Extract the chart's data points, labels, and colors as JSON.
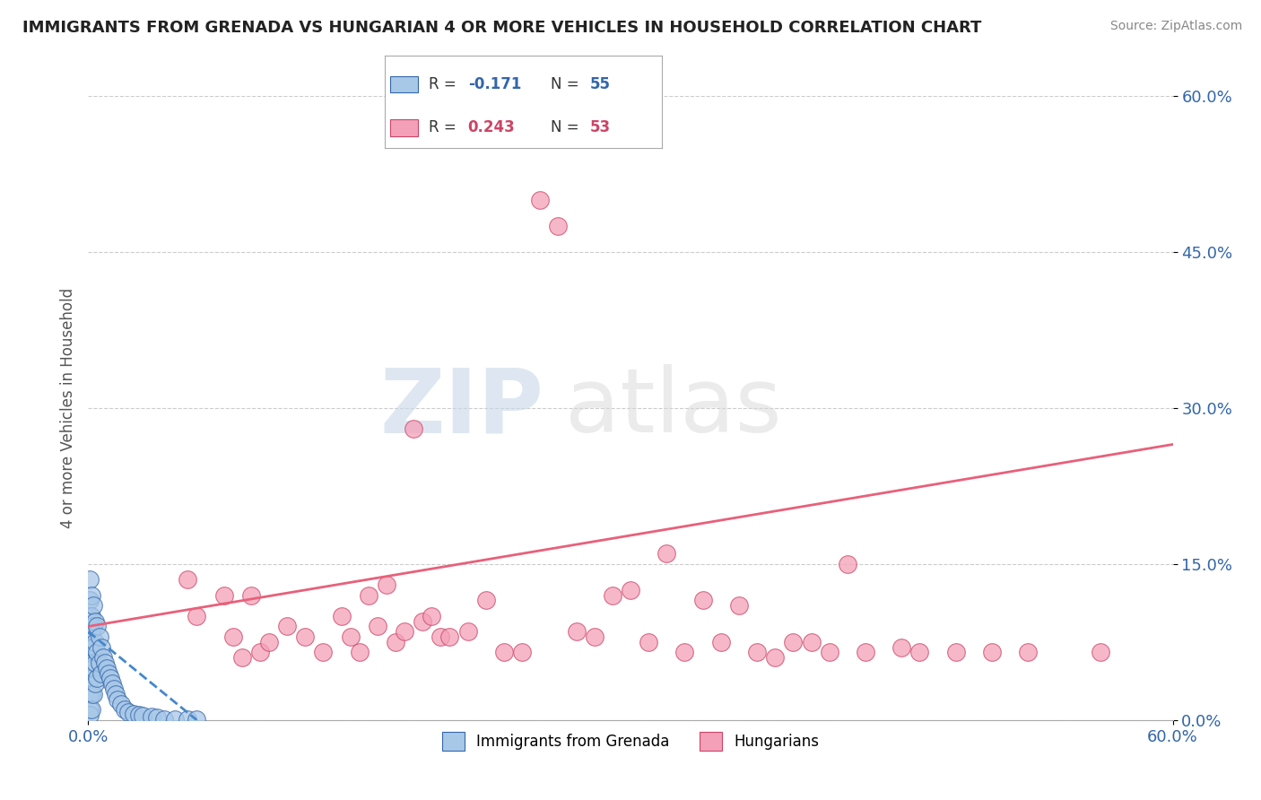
{
  "title": "IMMIGRANTS FROM GRENADA VS HUNGARIAN 4 OR MORE VEHICLES IN HOUSEHOLD CORRELATION CHART",
  "source": "Source: ZipAtlas.com",
  "ylabel": "4 or more Vehicles in Household",
  "xlim": [
    0.0,
    0.6
  ],
  "ylim": [
    0.0,
    0.6
  ],
  "color_blue": "#a8c8e8",
  "color_blue_line": "#4488cc",
  "color_blue_dark": "#3366aa",
  "color_pink": "#f4a0b8",
  "color_pink_line": "#e8607a",
  "color_pink_dark": "#cc4466",
  "watermark_zip": "ZIP",
  "watermark_atlas": "atlas",
  "grenada_x": [
    0.001,
    0.001,
    0.001,
    0.001,
    0.001,
    0.001,
    0.001,
    0.001,
    0.001,
    0.001,
    0.002,
    0.002,
    0.002,
    0.002,
    0.002,
    0.002,
    0.002,
    0.002,
    0.003,
    0.003,
    0.003,
    0.003,
    0.003,
    0.004,
    0.004,
    0.004,
    0.004,
    0.005,
    0.005,
    0.005,
    0.006,
    0.006,
    0.007,
    0.007,
    0.008,
    0.009,
    0.01,
    0.011,
    0.012,
    0.013,
    0.014,
    0.015,
    0.016,
    0.018,
    0.02,
    0.022,
    0.025,
    0.028,
    0.03,
    0.035,
    0.038,
    0.042,
    0.048,
    0.055,
    0.06
  ],
  "grenada_y": [
    0.135,
    0.115,
    0.1,
    0.085,
    0.07,
    0.055,
    0.04,
    0.025,
    0.01,
    0.005,
    0.12,
    0.1,
    0.085,
    0.07,
    0.055,
    0.04,
    0.025,
    0.01,
    0.11,
    0.09,
    0.07,
    0.05,
    0.025,
    0.095,
    0.075,
    0.055,
    0.035,
    0.09,
    0.065,
    0.04,
    0.08,
    0.055,
    0.07,
    0.045,
    0.06,
    0.055,
    0.05,
    0.045,
    0.04,
    0.035,
    0.03,
    0.025,
    0.02,
    0.015,
    0.01,
    0.008,
    0.006,
    0.005,
    0.004,
    0.003,
    0.002,
    0.001,
    0.001,
    0.001,
    0.001
  ],
  "hungarian_x": [
    0.055,
    0.06,
    0.075,
    0.08,
    0.085,
    0.09,
    0.095,
    0.1,
    0.11,
    0.12,
    0.13,
    0.14,
    0.145,
    0.15,
    0.155,
    0.16,
    0.165,
    0.17,
    0.175,
    0.18,
    0.185,
    0.19,
    0.195,
    0.2,
    0.21,
    0.22,
    0.23,
    0.24,
    0.25,
    0.26,
    0.27,
    0.28,
    0.29,
    0.3,
    0.31,
    0.32,
    0.33,
    0.34,
    0.35,
    0.36,
    0.37,
    0.38,
    0.39,
    0.4,
    0.41,
    0.42,
    0.43,
    0.45,
    0.46,
    0.48,
    0.5,
    0.52,
    0.56
  ],
  "hungarian_y": [
    0.135,
    0.1,
    0.12,
    0.08,
    0.06,
    0.12,
    0.065,
    0.075,
    0.09,
    0.08,
    0.065,
    0.1,
    0.08,
    0.065,
    0.12,
    0.09,
    0.13,
    0.075,
    0.085,
    0.28,
    0.095,
    0.1,
    0.08,
    0.08,
    0.085,
    0.115,
    0.065,
    0.065,
    0.5,
    0.475,
    0.085,
    0.08,
    0.12,
    0.125,
    0.075,
    0.16,
    0.065,
    0.115,
    0.075,
    0.11,
    0.065,
    0.06,
    0.075,
    0.075,
    0.065,
    0.15,
    0.065,
    0.07,
    0.065,
    0.065,
    0.065,
    0.065,
    0.065
  ],
  "blue_trend_x": [
    0.0,
    0.06
  ],
  "blue_trend_y_start": 0.085,
  "blue_trend_y_end": 0.0,
  "pink_trend_x": [
    0.0,
    0.6
  ],
  "pink_trend_y_start": 0.09,
  "pink_trend_y_end": 0.265
}
